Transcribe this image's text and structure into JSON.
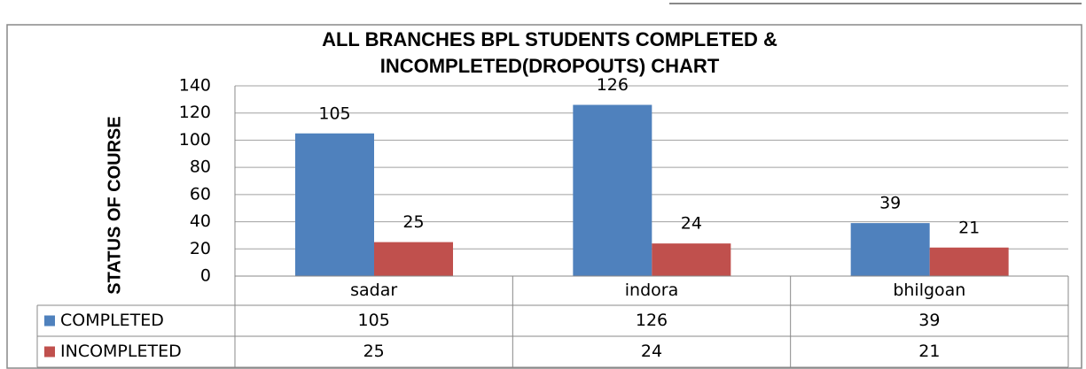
{
  "chart_data": {
    "type": "bar",
    "title": "ALL BRANCHES BPL STUDENTS COMPLETED & INCOMPLETED(DROPOUTS) CHART",
    "y_label": "STATUS OF COURSE",
    "categories": [
      "sadar",
      "indora",
      "bhilgoan"
    ],
    "series": [
      {
        "name": "COMPLETED",
        "color": "#4f81bd",
        "values": [
          105,
          126,
          39
        ]
      },
      {
        "name": "INCOMPLETED",
        "color": "#c0504d",
        "values": [
          25,
          24,
          21
        ]
      }
    ],
    "ylim": [
      0,
      140
    ],
    "yticks": [
      0,
      20,
      40,
      60,
      80,
      100,
      120,
      140
    ],
    "grid": true,
    "data_table": true
  }
}
